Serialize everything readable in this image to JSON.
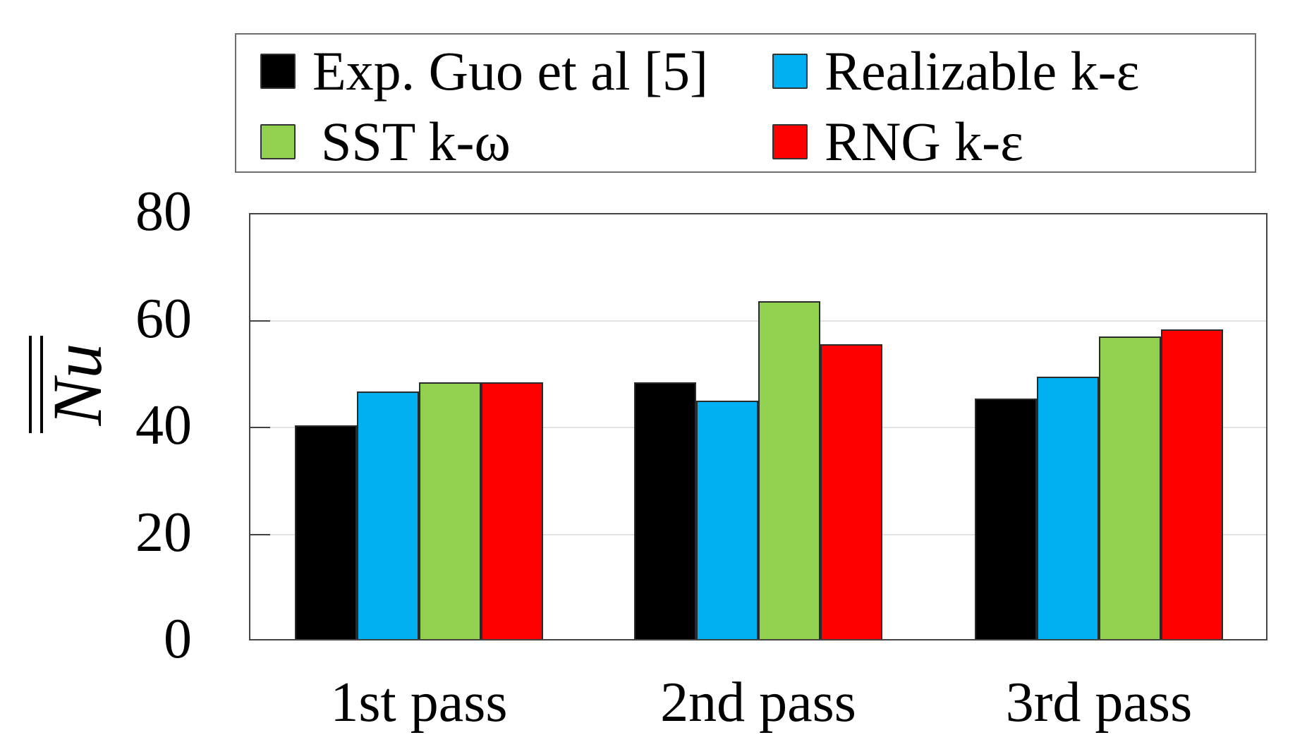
{
  "chart_data": {
    "type": "bar",
    "title": "",
    "xlabel": "",
    "ylabel": "Nu (double overbar)",
    "ylabel_text": "Nu",
    "ylim": [
      0,
      80
    ],
    "yticks": [
      "0",
      "20",
      "40",
      "60",
      "80"
    ],
    "grid": true,
    "legend_position": "top",
    "categories": [
      "1st pass",
      "2nd pass",
      "3rd pass"
    ],
    "series": [
      {
        "name": "Exp. Guo et al [5]",
        "color": "#000000",
        "values": [
          40.0,
          48.0,
          45.0
        ]
      },
      {
        "name": "Realizable k-ε",
        "color": "#00b0f0",
        "values": [
          46.4,
          44.6,
          49.1
        ]
      },
      {
        "name": "SST k-ω",
        "color": "#92d050",
        "values": [
          48.1,
          63.2,
          56.6
        ]
      },
      {
        "name": "RNG k-ε",
        "color": "#ff0000",
        "values": [
          48.1,
          55.2,
          58.0
        ]
      }
    ]
  }
}
